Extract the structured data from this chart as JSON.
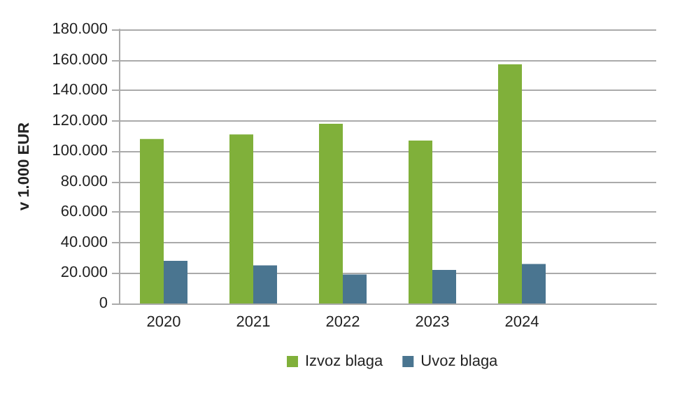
{
  "chart_data": {
    "type": "bar",
    "ylabel": "v 1.000 EUR",
    "categories": [
      "2020",
      "2021",
      "2022",
      "2023",
      "2024",
      null
    ],
    "series": [
      {
        "name": "Izvoz blaga",
        "color": "#80b03a",
        "values": [
          108000,
          111000,
          118000,
          107000,
          157000,
          null
        ]
      },
      {
        "name": "Uvoz blaga",
        "color": "#4a7590",
        "values": [
          28000,
          25000,
          19000,
          22000,
          26000,
          null
        ]
      }
    ],
    "ylim": [
      0,
      180000
    ],
    "yticks": [
      {
        "value": 0,
        "label": "0"
      },
      {
        "value": 20000,
        "label": "20.000"
      },
      {
        "value": 40000,
        "label": "40.000"
      },
      {
        "value": 60000,
        "label": "60.000"
      },
      {
        "value": 80000,
        "label": "80.000"
      },
      {
        "value": 100000,
        "label": "100.000"
      },
      {
        "value": 120000,
        "label": "120.000"
      },
      {
        "value": 140000,
        "label": "140.000"
      },
      {
        "value": 160000,
        "label": "160.000"
      },
      {
        "value": 180000,
        "label": "180.000"
      }
    ],
    "grid": "y",
    "legend": "bottom"
  }
}
